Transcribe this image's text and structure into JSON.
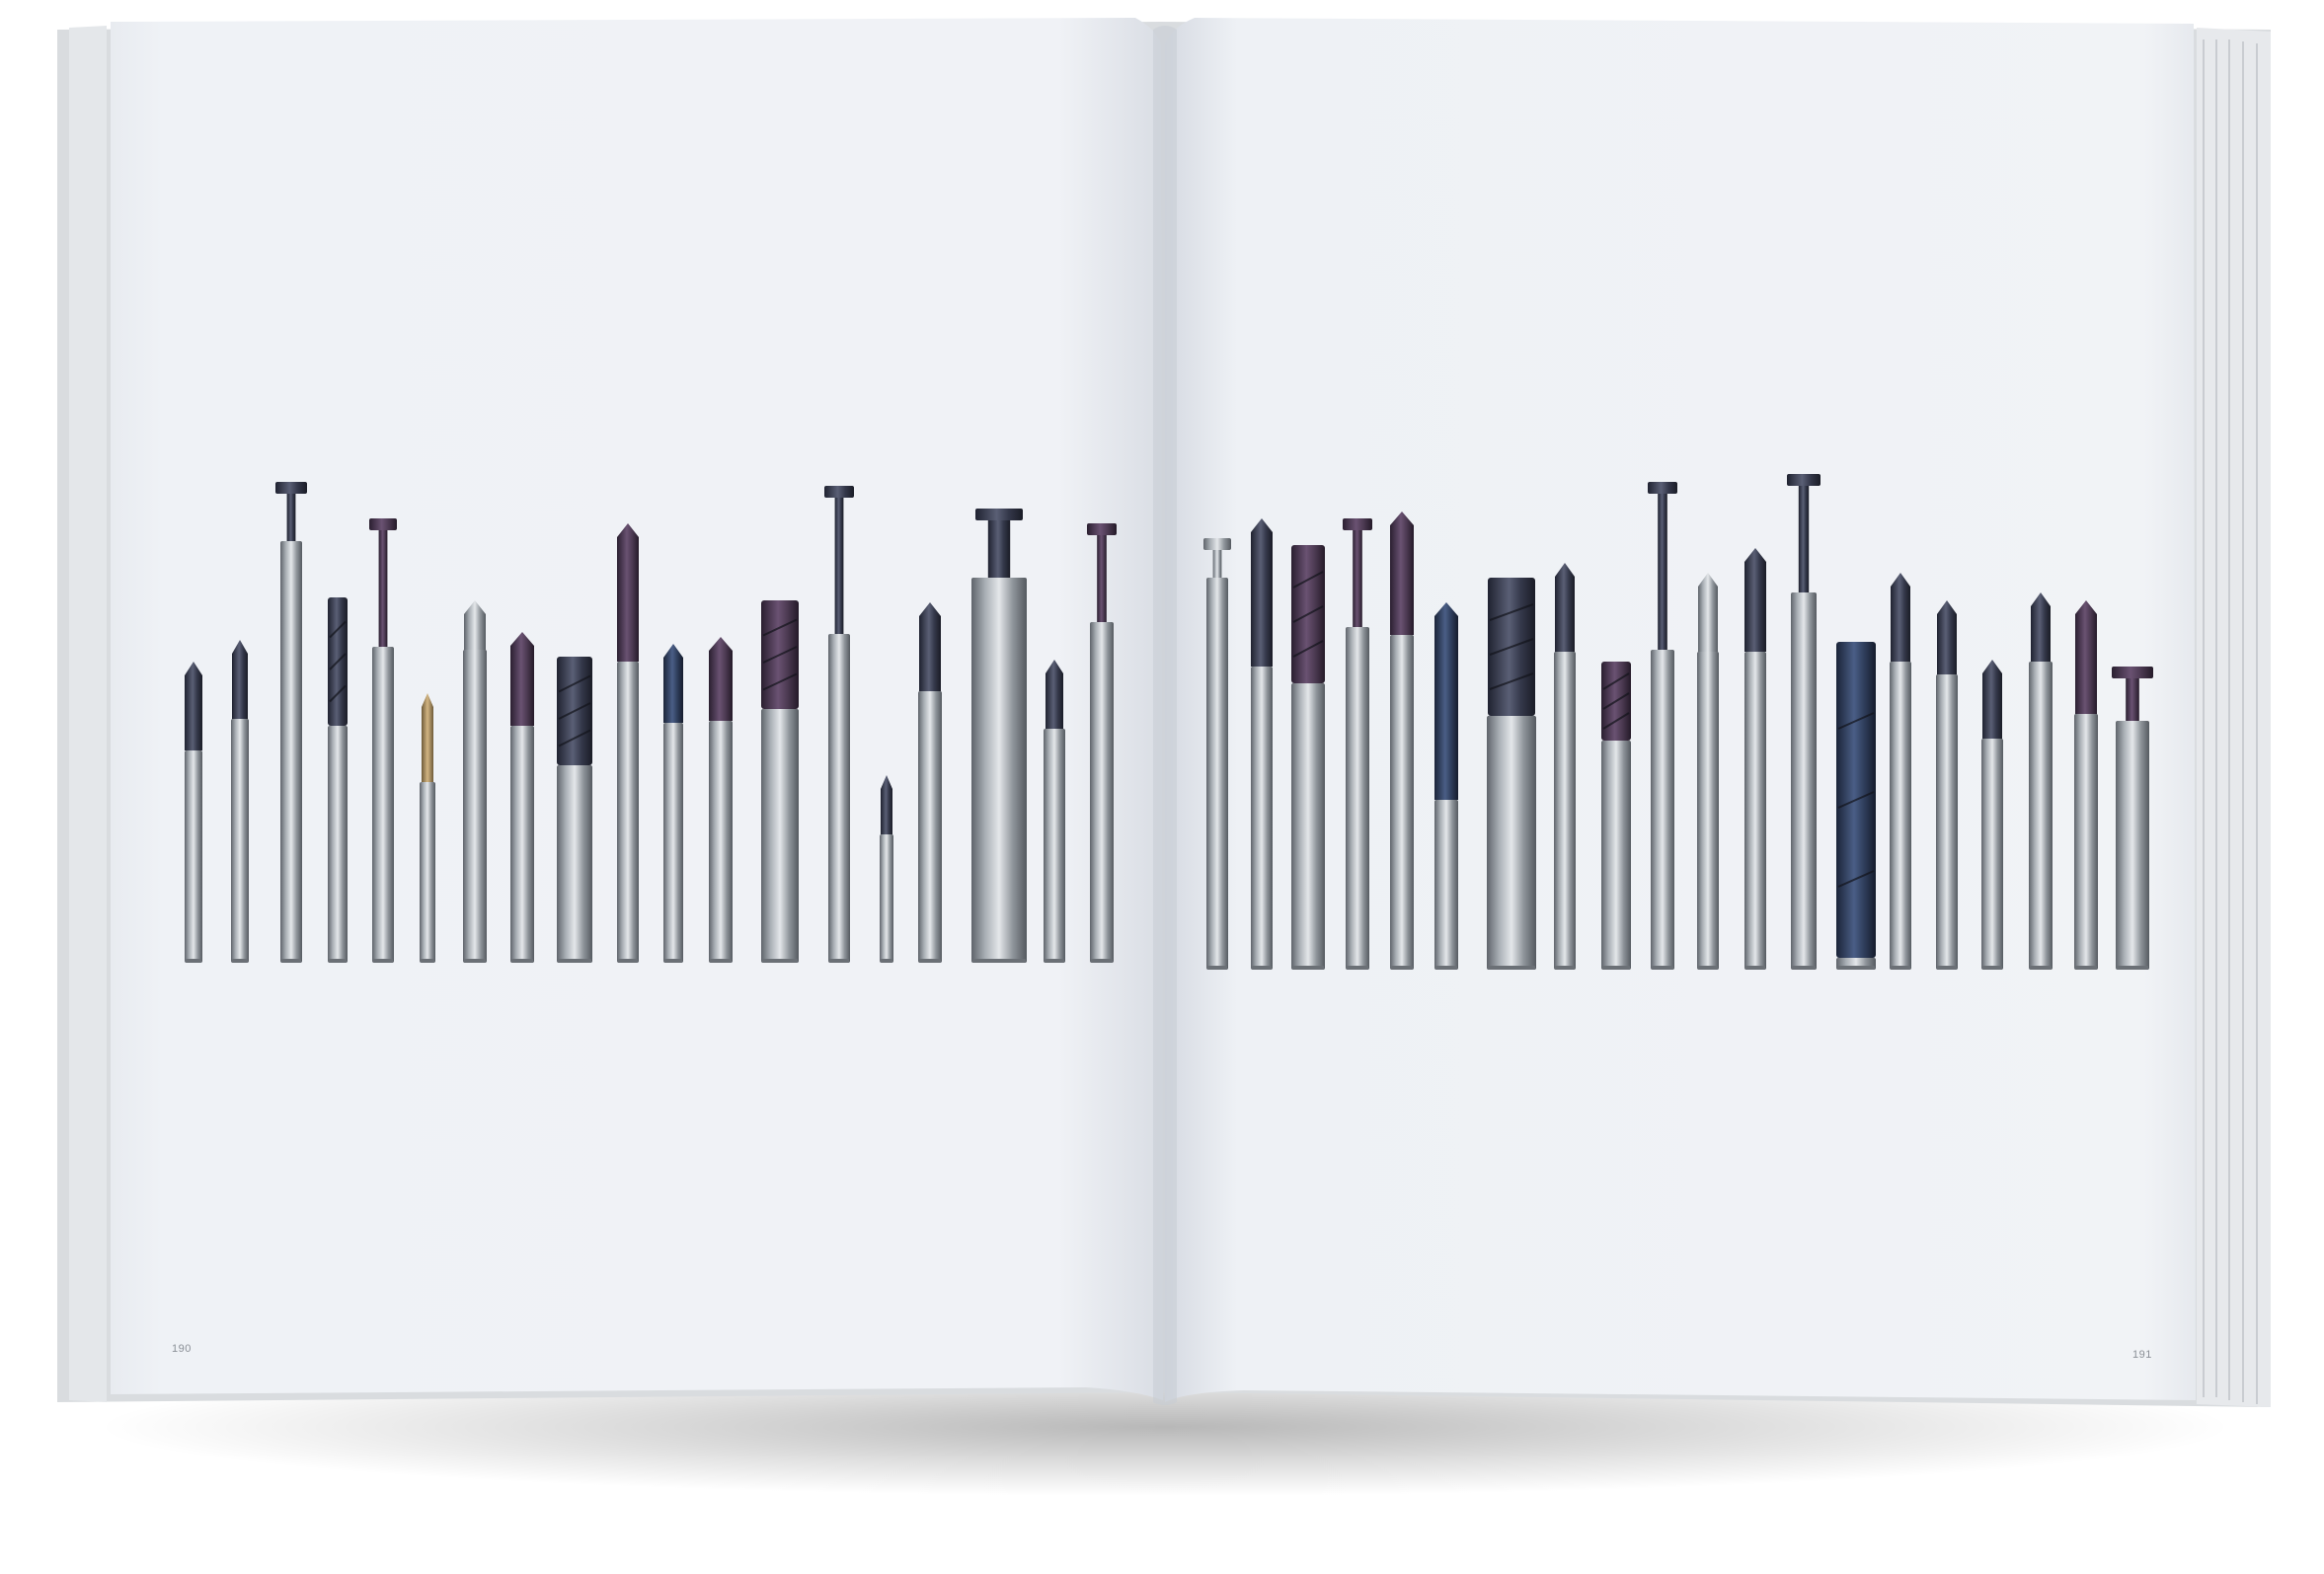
{
  "book": {
    "left_page": {
      "page_number": "190"
    },
    "right_page": {
      "page_number": "191"
    }
  },
  "photograph": {
    "subject": "milling cutters",
    "colors": {
      "page": "#eef1f6",
      "steel": "#9aa0a6",
      "coating_dark": "#34384a",
      "coating_purple": "#4c3a52",
      "coating_blue": "#2f3e5c",
      "coating_gold": "#a88a58"
    }
  }
}
